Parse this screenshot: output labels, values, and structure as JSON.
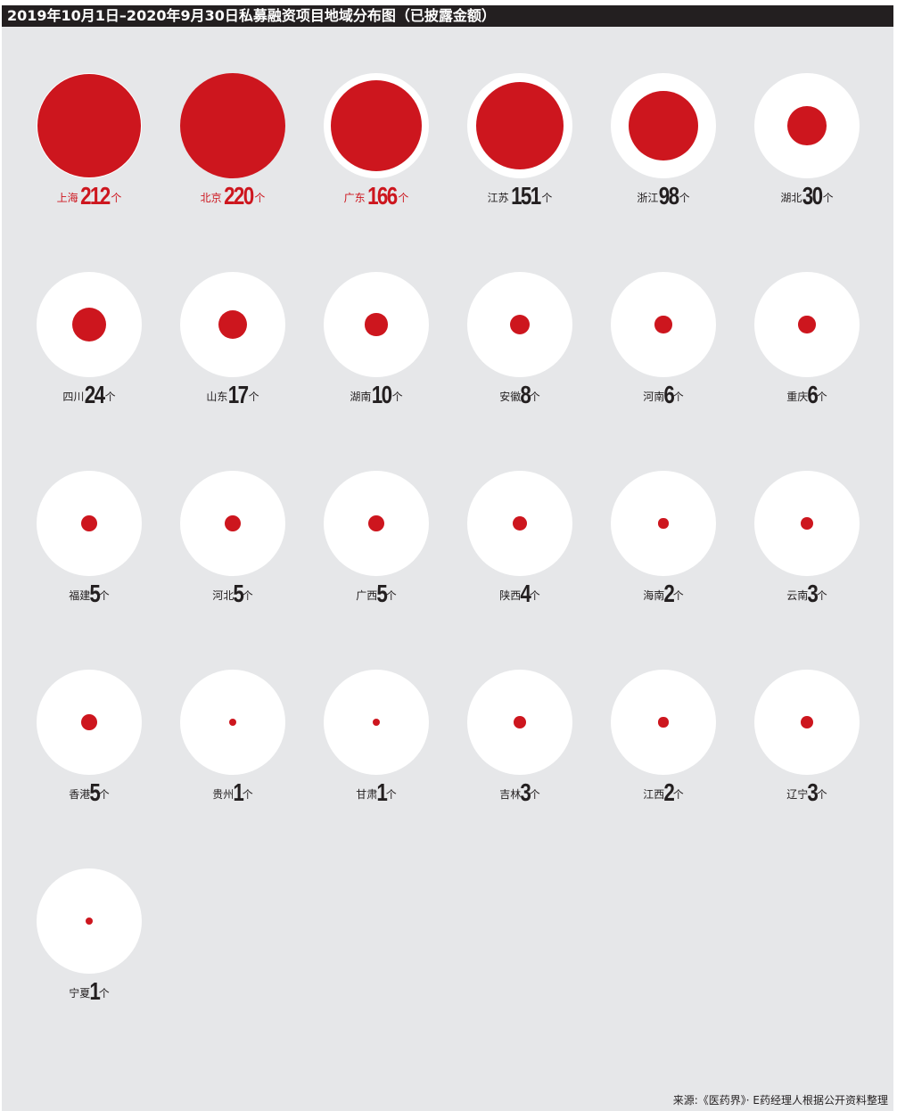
{
  "chart_data": {
    "type": "bubble",
    "title": "2019年10月1日–2020年9月30日私募融资项目地域分布图（已披露金额）",
    "unit": "个",
    "source": "来源:《医药界》· E药经理人根据公开资料整理",
    "colors": {
      "bubble": "#cd161e",
      "highlight_text": "#cd161e",
      "text": "#231f20",
      "background": "#e6e7e9",
      "ring": "#ffffff"
    },
    "highlighted": [
      "上海",
      "北京",
      "广东"
    ],
    "categories": [
      "上海",
      "北京",
      "广东",
      "江苏",
      "浙江",
      "湖北",
      "四川",
      "山东",
      "湖南",
      "安徽",
      "河南",
      "重庆",
      "福建",
      "河北",
      "广西",
      "陕西",
      "海南",
      "云南",
      "香港",
      "贵州",
      "甘肃",
      "吉林",
      "江西",
      "辽宁",
      "宁夏"
    ],
    "values": [
      212,
      220,
      166,
      151,
      98,
      30,
      24,
      17,
      10,
      8,
      6,
      6,
      5,
      5,
      5,
      4,
      2,
      3,
      5,
      1,
      1,
      3,
      2,
      3,
      1
    ]
  }
}
